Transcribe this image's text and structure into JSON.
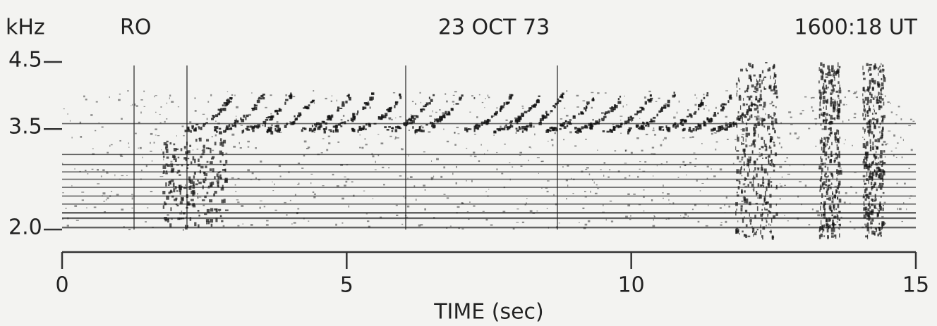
{
  "chart_data": {
    "type": "spectrogram",
    "y_unit": "kHz",
    "station": "RO",
    "date": "23 OCT 73",
    "time": "1600:18 UT",
    "xlabel": "TIME (sec)",
    "xlim": [
      0,
      15
    ],
    "xticks": [
      0,
      5,
      10,
      15
    ],
    "ylim": [
      2,
      4.5
    ],
    "yticks": [
      {
        "value": 2,
        "label": "2.0"
      },
      3.5,
      4.5
    ]
  }
}
